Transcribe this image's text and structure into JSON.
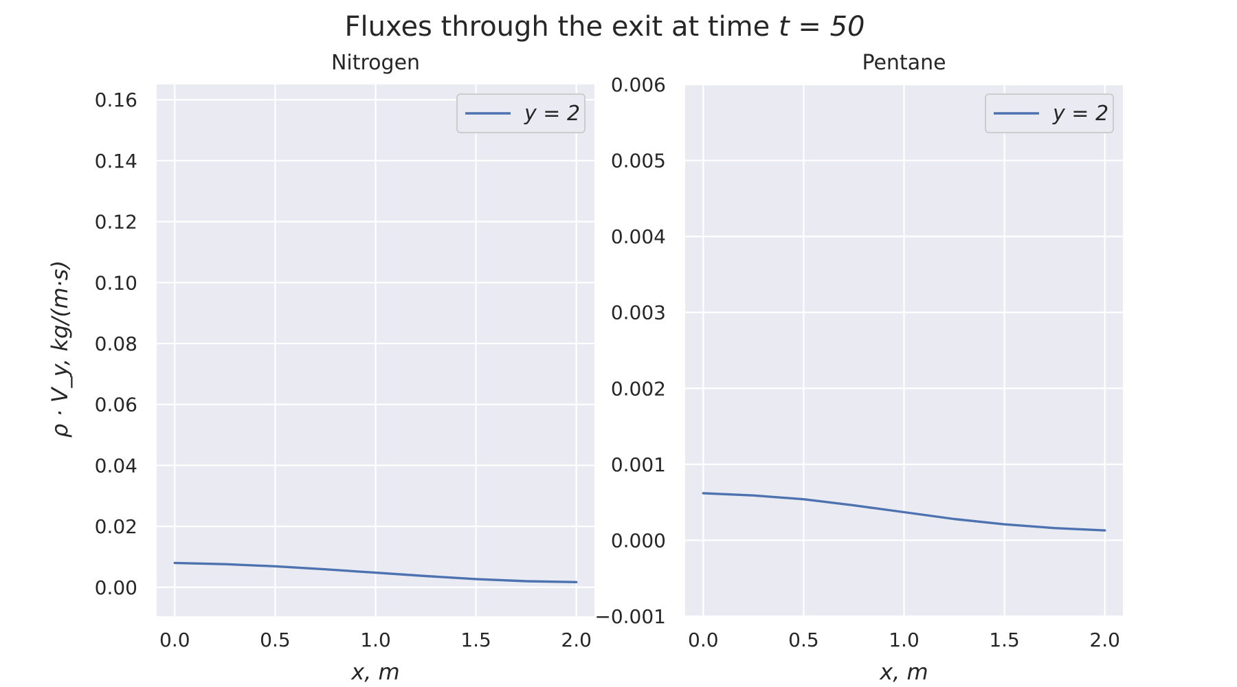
{
  "figure": {
    "title": "Fluxes through the exit at time t = 50",
    "title_prefix": "Fluxes through the exit at time ",
    "title_math": "t = 50",
    "ylabel": "ρ · V_y, kg/(m·s)"
  },
  "colors": {
    "axes_bg": "#eaeaf2",
    "grid": "#ffffff",
    "line": "#4c72b0",
    "text": "#262626"
  },
  "chart_data": [
    {
      "type": "line",
      "title": "Nitrogen",
      "xlabel": "x, m",
      "ylabel": "ρ · V_y, kg/(m·s)",
      "xlim": [
        -0.09,
        2.09
      ],
      "ylim": [
        -0.0095,
        0.165
      ],
      "xticks": [
        0.0,
        0.5,
        1.0,
        1.5,
        2.0
      ],
      "xtick_labels": [
        "0.0",
        "0.5",
        "1.0",
        "1.5",
        "2.0"
      ],
      "yticks": [
        0.0,
        0.02,
        0.04,
        0.06,
        0.08,
        0.1,
        0.12,
        0.14,
        0.16
      ],
      "ytick_labels": [
        "0.00",
        "0.02",
        "0.04",
        "0.06",
        "0.08",
        "0.10",
        "0.12",
        "0.14",
        "0.16"
      ],
      "grid": true,
      "legend_position": "top-right",
      "series": [
        {
          "name": "y = 2",
          "x": [
            0.0,
            0.25,
            0.5,
            0.75,
            1.0,
            1.25,
            1.5,
            1.75,
            2.0
          ],
          "y": [
            0.008,
            0.0076,
            0.0069,
            0.0059,
            0.0048,
            0.0037,
            0.0027,
            0.002,
            0.0017
          ]
        }
      ]
    },
    {
      "type": "line",
      "title": "Pentane",
      "xlabel": "x, m",
      "ylabel": "",
      "xlim": [
        -0.09,
        2.09
      ],
      "ylim": [
        -0.001,
        0.006
      ],
      "xticks": [
        0.0,
        0.5,
        1.0,
        1.5,
        2.0
      ],
      "xtick_labels": [
        "0.0",
        "0.5",
        "1.0",
        "1.5",
        "2.0"
      ],
      "yticks": [
        -0.001,
        0.0,
        0.001,
        0.002,
        0.003,
        0.004,
        0.005,
        0.006
      ],
      "ytick_labels": [
        "−0.001",
        "0.000",
        "0.001",
        "0.002",
        "0.003",
        "0.004",
        "0.005",
        "0.006"
      ],
      "grid": true,
      "legend_position": "top-right",
      "series": [
        {
          "name": "y = 2",
          "x": [
            0.0,
            0.25,
            0.5,
            0.75,
            1.0,
            1.25,
            1.5,
            1.75,
            2.0
          ],
          "y": [
            0.00062,
            0.00059,
            0.00054,
            0.00046,
            0.00037,
            0.00028,
            0.00021,
            0.00016,
            0.00013
          ]
        }
      ]
    }
  ]
}
